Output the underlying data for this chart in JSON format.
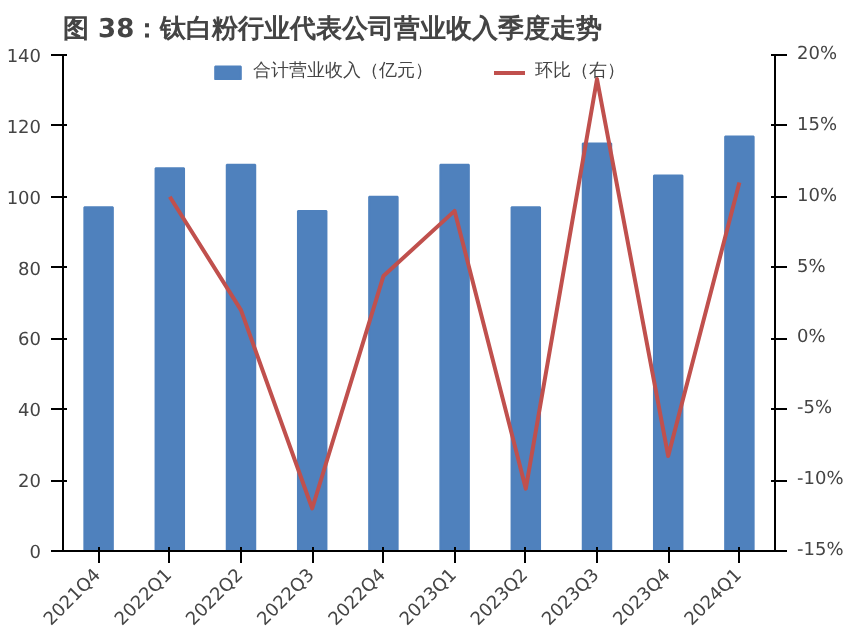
{
  "chart_data": {
    "type": "bar",
    "title": "图 38：钛白粉行业代表公司营业收入季度走势",
    "categories": [
      "2021Q4",
      "2022Q1",
      "2022Q2",
      "2022Q3",
      "2022Q4",
      "2023Q1",
      "2023Q2",
      "2023Q3",
      "2023Q4",
      "2024Q1"
    ],
    "series": [
      {
        "name": "合计营业收入（亿元）",
        "color": "#4f81bd",
        "values": [
          97,
          108,
          109,
          96,
          100,
          109,
          97,
          115,
          106,
          117
        ]
      },
      {
        "name": "环比（右）",
        "type": "line",
        "axis": "y2",
        "color": "#c0504d",
        "values": [
          null,
          10,
          2,
          -12,
          4.4,
          9,
          -10.6,
          18.3,
          -8.3,
          11
        ]
      }
    ],
    "ylim": [
      0,
      140
    ],
    "yticks": [
      0,
      20,
      40,
      60,
      80,
      100,
      120,
      140
    ],
    "y2lim": [
      -15,
      20
    ],
    "y2ticks": [
      {
        "value": -15,
        "label": "-15%"
      },
      {
        "value": -10,
        "label": "-10%"
      },
      {
        "value": -5,
        "label": "-5%"
      },
      {
        "value": 0,
        "label": "0%"
      },
      {
        "value": 5,
        "label": "5%"
      },
      {
        "value": 10,
        "label": "10%"
      },
      {
        "value": 15,
        "label": "15%"
      },
      {
        "value": 20,
        "label": "20%"
      }
    ],
    "legend": "top"
  }
}
